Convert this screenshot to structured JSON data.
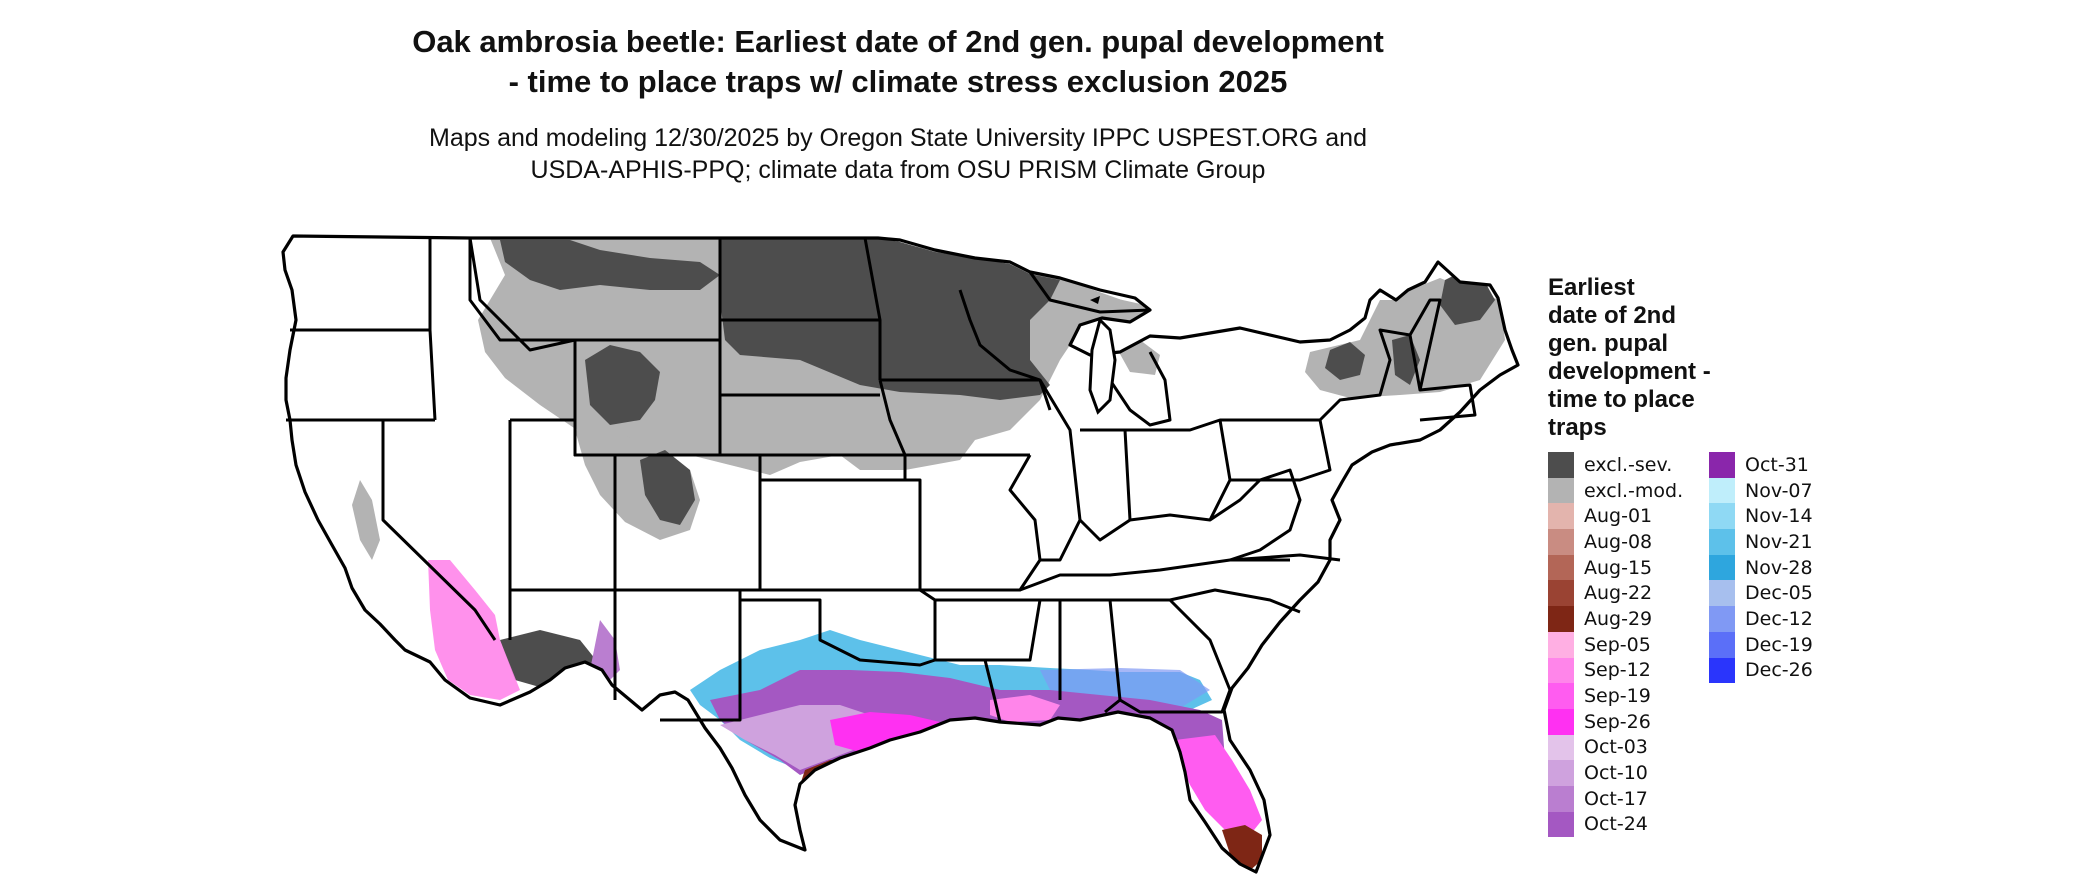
{
  "title_line1": "Oak ambrosia beetle: Earliest date of 2nd gen. pupal development",
  "title_line2": "- time to place traps w/ climate stress exclusion 2025",
  "subtitle_line1": "Maps and modeling 12/30/2025 by Oregon State University IPPC USPEST.ORG and",
  "subtitle_line2": "USDA-APHIS-PPQ; climate data from OSU PRISM Climate Group",
  "legend": {
    "title_lines": [
      "Earliest",
      "date of 2nd",
      "gen. pupal",
      "development -",
      "time to place",
      "traps"
    ],
    "col1": [
      {
        "label": "excl.-sev.",
        "color": "#4d4d4d"
      },
      {
        "label": "excl.-mod.",
        "color": "#b3b3b3"
      },
      {
        "label": "Aug-01",
        "color": "#e3b4ad"
      },
      {
        "label": "Aug-08",
        "color": "#c98c82"
      },
      {
        "label": "Aug-15",
        "color": "#b36657"
      },
      {
        "label": "Aug-22",
        "color": "#9a4333"
      },
      {
        "label": "Aug-29",
        "color": "#7e2615"
      },
      {
        "label": "Sep-05",
        "color": "#ffafe3"
      },
      {
        "label": "Sep-12",
        "color": "#ff85ea"
      },
      {
        "label": "Sep-19",
        "color": "#ff5cf0"
      },
      {
        "label": "Sep-26",
        "color": "#ff30f2"
      },
      {
        "label": "Oct-03",
        "color": "#e3c3ea"
      },
      {
        "label": "Oct-10",
        "color": "#cfa2de"
      },
      {
        "label": "Oct-17",
        "color": "#ba7ed0"
      },
      {
        "label": "Oct-24",
        "color": "#a458c2"
      }
    ],
    "col2": [
      {
        "label": "Oct-31",
        "color": "#8a26ab"
      },
      {
        "label": "Nov-07",
        "color": "#bfeefb"
      },
      {
        "label": "Nov-14",
        "color": "#8fd9f4"
      },
      {
        "label": "Nov-21",
        "color": "#5dc1ea"
      },
      {
        "label": "Nov-28",
        "color": "#2ea6de"
      },
      {
        "label": "Dec-05",
        "color": "#a7bfee"
      },
      {
        "label": "Dec-12",
        "color": "#8099f4"
      },
      {
        "label": "Dec-19",
        "color": "#5b6ff8"
      },
      {
        "label": "Dec-26",
        "color": "#2a35fc"
      }
    ]
  }
}
